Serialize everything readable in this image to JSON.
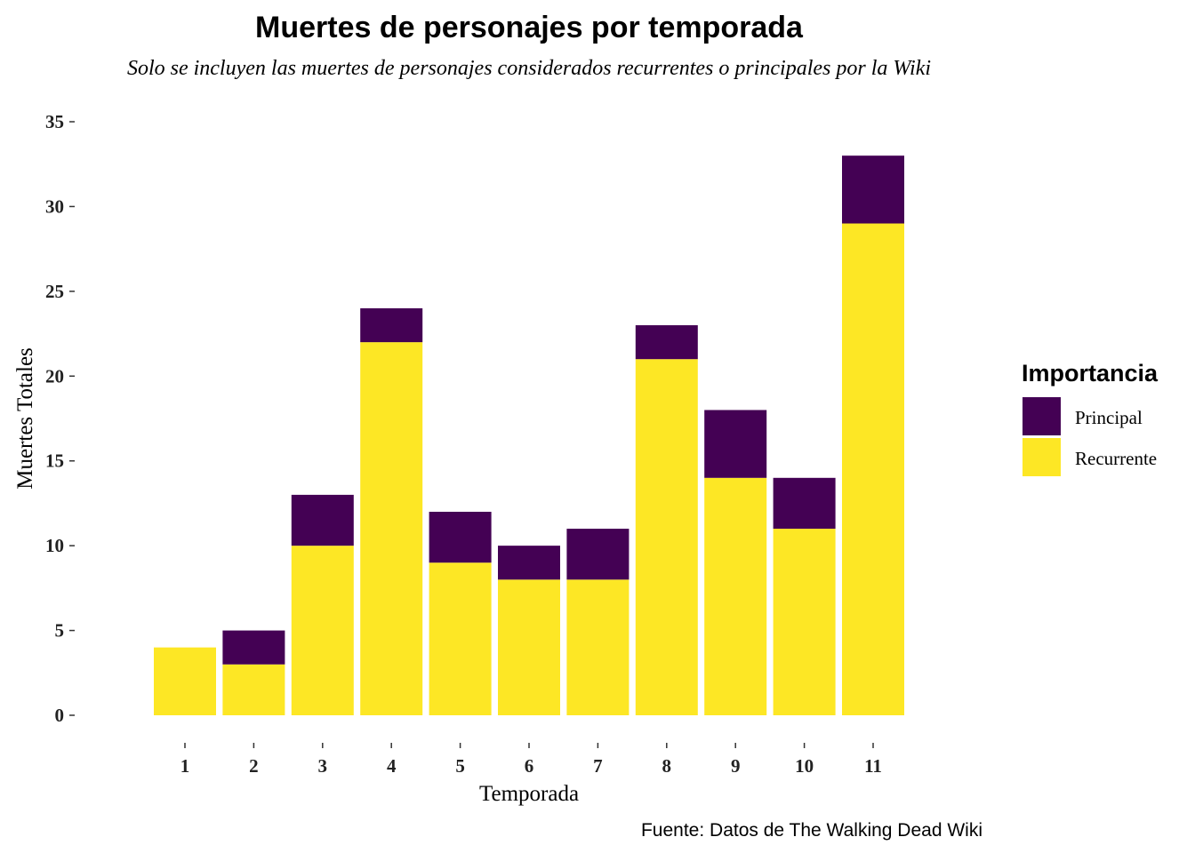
{
  "chart_data": {
    "type": "bar",
    "stacked": true,
    "title": "Muertes de personajes por temporada",
    "subtitle": "Solo se incluyen las muertes de personajes considerados recurrentes o principales por la Wiki",
    "xlabel": "Temporada",
    "ylabel": "Muertes Totales",
    "caption": "Fuente: Datos de The Walking Dead Wiki",
    "categories": [
      "1",
      "2",
      "3",
      "4",
      "5",
      "6",
      "7",
      "8",
      "9",
      "10",
      "11"
    ],
    "series": [
      {
        "name": "Recurrente",
        "color": "#FDE725",
        "values": [
          4,
          3,
          10,
          22,
          9,
          8,
          8,
          21,
          14,
          11,
          29
        ]
      },
      {
        "name": "Principal",
        "color": "#440154",
        "values": [
          0,
          2,
          3,
          2,
          3,
          2,
          3,
          2,
          4,
          3,
          4
        ]
      }
    ],
    "ylim": [
      0,
      35
    ],
    "yticks": [
      "0",
      "5",
      "10",
      "15",
      "20",
      "25",
      "30",
      "35"
    ],
    "grid": false,
    "legend": {
      "title": "Importancia",
      "position": "right",
      "items": [
        {
          "label": "Principal",
          "color": "#440154"
        },
        {
          "label": "Recurrente",
          "color": "#FDE725"
        }
      ]
    }
  }
}
